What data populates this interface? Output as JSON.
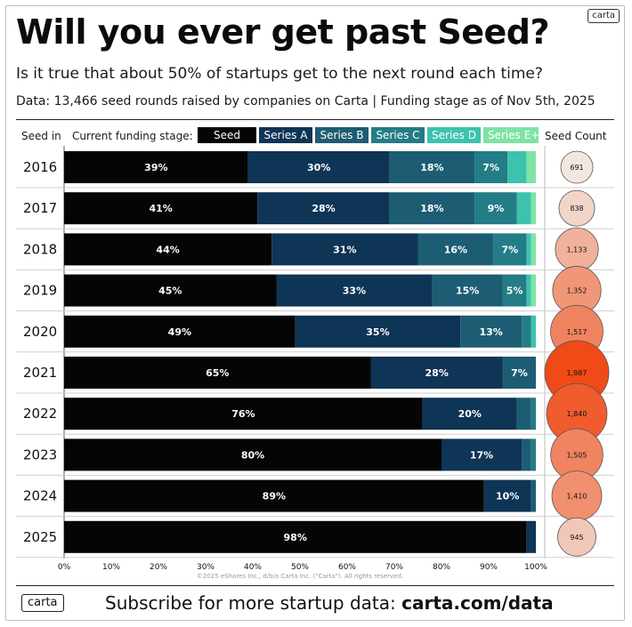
{
  "header": {
    "title": "Will you ever get past Seed?",
    "subtitle": "Is it true that about 50% of startups get to the next round each time?",
    "source": "Data: 13,466 seed rounds raised by companies on Carta | Funding stage as of Nov 5th, 2025",
    "logo": "carta"
  },
  "table_headers": {
    "seed_in": "Seed in",
    "current_stage": "Current funding stage:",
    "seed_count": "Seed Count"
  },
  "legend": [
    {
      "label": "Seed",
      "color": "#050505"
    },
    {
      "label": "Series A",
      "color": "#0e3456"
    },
    {
      "label": "Series B",
      "color": "#1d5d73"
    },
    {
      "label": "Series C",
      "color": "#237c86"
    },
    {
      "label": "Series D",
      "color": "#3cc2ad"
    },
    {
      "label": "Series E+",
      "color": "#7ee3a5"
    }
  ],
  "chart_data": {
    "type": "bar",
    "orientation": "horizontal-stacked-100",
    "categories": [
      "2016",
      "2017",
      "2018",
      "2019",
      "2020",
      "2021",
      "2022",
      "2023",
      "2024",
      "2025"
    ],
    "series": [
      {
        "name": "Seed",
        "values": [
          39,
          41,
          44,
          45,
          49,
          65,
          76,
          80,
          89,
          98
        ]
      },
      {
        "name": "Series A",
        "values": [
          30,
          28,
          31,
          33,
          35,
          28,
          20,
          17,
          10,
          2
        ]
      },
      {
        "name": "Series B",
        "values": [
          18,
          18,
          16,
          15,
          13,
          7,
          3,
          2,
          1,
          0
        ]
      },
      {
        "name": "Series C",
        "values": [
          7,
          9,
          7,
          5,
          2,
          0,
          1,
          1,
          0,
          0
        ]
      },
      {
        "name": "Series D",
        "values": [
          4,
          3,
          1,
          1,
          1,
          0,
          0,
          0,
          0,
          0
        ]
      },
      {
        "name": "Series E+",
        "values": [
          2,
          1,
          1,
          1,
          0,
          0,
          0,
          0,
          0,
          0
        ]
      }
    ],
    "labels": [
      [
        "39%",
        "30%",
        "18%",
        "7%",
        "",
        ""
      ],
      [
        "41%",
        "28%",
        "18%",
        "9%",
        "",
        ""
      ],
      [
        "44%",
        "31%",
        "16%",
        "7%",
        "",
        ""
      ],
      [
        "45%",
        "33%",
        "15%",
        "5%",
        "",
        ""
      ],
      [
        "49%",
        "35%",
        "13%",
        "",
        "",
        ""
      ],
      [
        "65%",
        "28%",
        "7%",
        "",
        "",
        ""
      ],
      [
        "76%",
        "20%",
        "",
        "",
        "",
        ""
      ],
      [
        "80%",
        "17%",
        "",
        "",
        "",
        ""
      ],
      [
        "89%",
        "10%",
        "",
        "",
        "",
        ""
      ],
      [
        "98%",
        "",
        "",
        "",
        "",
        ""
      ]
    ],
    "seed_counts": [
      691,
      838,
      1133,
      1352,
      1517,
      1987,
      1840,
      1505,
      1410,
      945
    ],
    "seed_count_labels": [
      "691",
      "838",
      "1,133",
      "1,352",
      "1,517",
      "1,987",
      "1,840",
      "1,505",
      "1,410",
      "945"
    ],
    "x_ticks": [
      "0%",
      "10%",
      "20%",
      "30%",
      "40%",
      "50%",
      "60%",
      "70%",
      "80%",
      "90%",
      "100%"
    ],
    "xlim": [
      0,
      100
    ],
    "grid": false,
    "bubble_color_low": "#f1e7df",
    "bubble_color_high": "#f04a16",
    "copyright": "©2025 eShares Inc., d/b/a Carta Inc. (\"Carta\"). All rights reserved."
  },
  "footer": {
    "logo": "carta",
    "text": "Subscribe for more startup data: ",
    "link": "carta.com/data"
  }
}
